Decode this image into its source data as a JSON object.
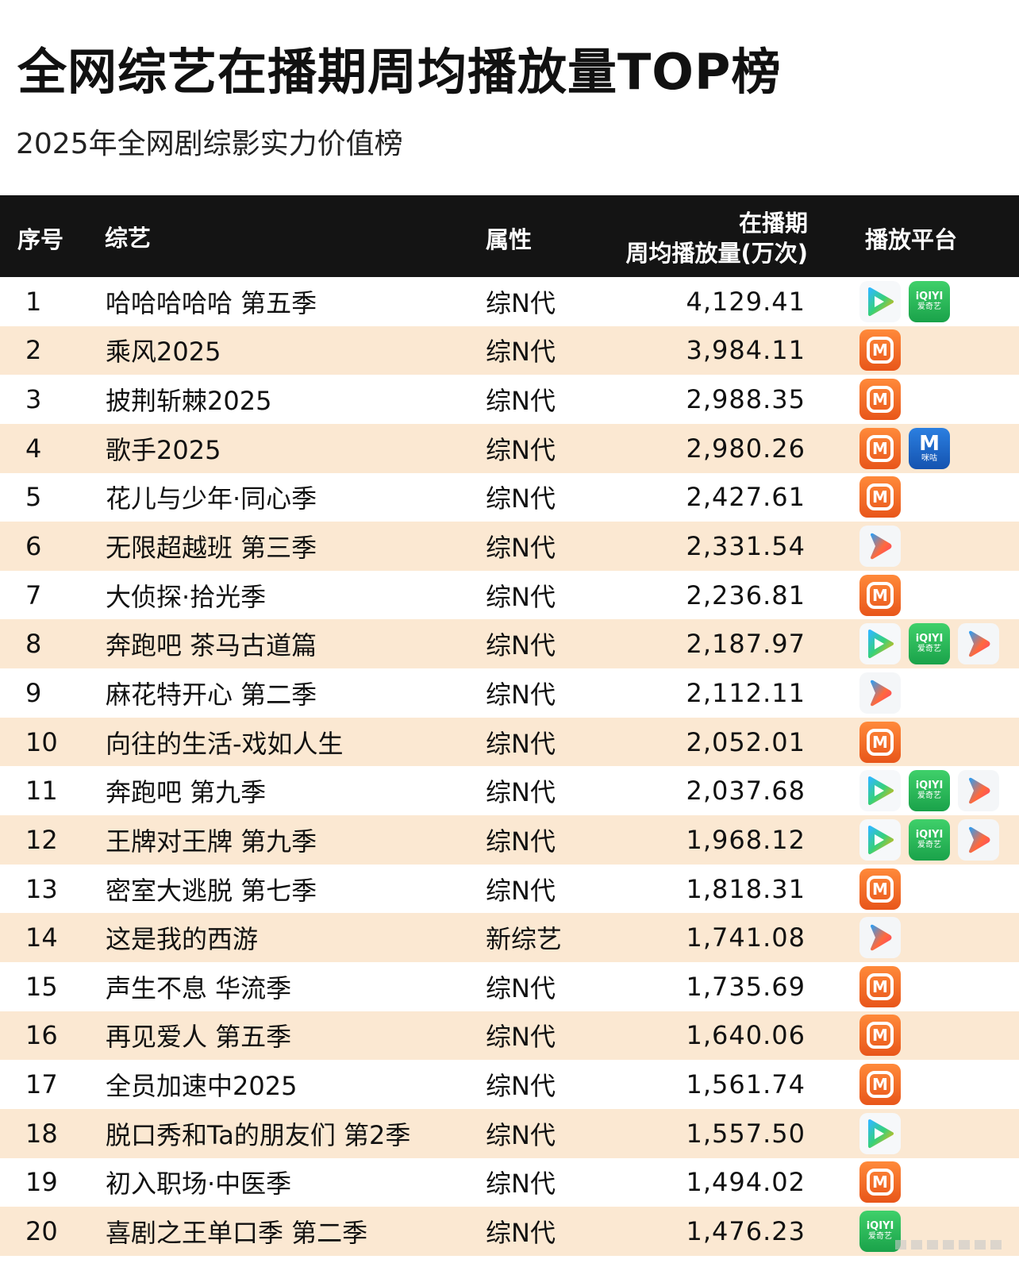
{
  "title": "全网综艺在播期周均播放量TOP榜",
  "subtitle": "2025年全网剧综影实力价值榜",
  "headers": {
    "rank": "序号",
    "name": "综艺",
    "attribute": "属性",
    "value_line1": "在播期",
    "value_line2": "周均播放量(万次)",
    "platform": "播放平台"
  },
  "platform_logos": {
    "mango": {
      "icon": "mango-tv-icon",
      "color": "#f36a25"
    },
    "iqiyi": {
      "icon": "iqiyi-icon",
      "color": "#1fb04f",
      "text": "iQIYI",
      "subtext": "爱奇艺"
    },
    "tencent": {
      "icon": "tencent-video-icon"
    },
    "youku": {
      "icon": "youku-icon"
    },
    "migu": {
      "icon": "migu-icon",
      "color": "#1f66c8",
      "text": "M",
      "subtext": "咪咕"
    }
  },
  "rows": [
    {
      "rank": "1",
      "name": "哈哈哈哈哈 第五季",
      "attribute": "综N代",
      "value": "4,129.41",
      "platforms": [
        "tencent",
        "iqiyi"
      ]
    },
    {
      "rank": "2",
      "name": "乘风2025",
      "attribute": "综N代",
      "value": "3,984.11",
      "platforms": [
        "mango"
      ]
    },
    {
      "rank": "3",
      "name": "披荆斩棘2025",
      "attribute": "综N代",
      "value": "2,988.35",
      "platforms": [
        "mango"
      ]
    },
    {
      "rank": "4",
      "name": "歌手2025",
      "attribute": "综N代",
      "value": "2,980.26",
      "platforms": [
        "mango",
        "migu"
      ]
    },
    {
      "rank": "5",
      "name": "花儿与少年·同心季",
      "attribute": "综N代",
      "value": "2,427.61",
      "platforms": [
        "mango"
      ]
    },
    {
      "rank": "6",
      "name": "无限超越班 第三季",
      "attribute": "综N代",
      "value": "2,331.54",
      "platforms": [
        "youku"
      ]
    },
    {
      "rank": "7",
      "name": "大侦探·拾光季",
      "attribute": "综N代",
      "value": "2,236.81",
      "platforms": [
        "mango"
      ]
    },
    {
      "rank": "8",
      "name": "奔跑吧 茶马古道篇",
      "attribute": "综N代",
      "value": "2,187.97",
      "platforms": [
        "tencent",
        "iqiyi",
        "youku"
      ]
    },
    {
      "rank": "9",
      "name": "麻花特开心 第二季",
      "attribute": "综N代",
      "value": "2,112.11",
      "platforms": [
        "youku"
      ]
    },
    {
      "rank": "10",
      "name": "向往的生活-戏如人生",
      "attribute": "综N代",
      "value": "2,052.01",
      "platforms": [
        "mango"
      ]
    },
    {
      "rank": "11",
      "name": "奔跑吧 第九季",
      "attribute": "综N代",
      "value": "2,037.68",
      "platforms": [
        "tencent",
        "iqiyi",
        "youku"
      ]
    },
    {
      "rank": "12",
      "name": "王牌对王牌 第九季",
      "attribute": "综N代",
      "value": "1,968.12",
      "platforms": [
        "tencent",
        "iqiyi",
        "youku"
      ]
    },
    {
      "rank": "13",
      "name": "密室大逃脱 第七季",
      "attribute": "综N代",
      "value": "1,818.31",
      "platforms": [
        "mango"
      ]
    },
    {
      "rank": "14",
      "name": "这是我的西游",
      "attribute": "新综艺",
      "value": "1,741.08",
      "platforms": [
        "youku"
      ]
    },
    {
      "rank": "15",
      "name": "声生不息 华流季",
      "attribute": "综N代",
      "value": "1,735.69",
      "platforms": [
        "mango"
      ]
    },
    {
      "rank": "16",
      "name": "再见爱人 第五季",
      "attribute": "综N代",
      "value": "1,640.06",
      "platforms": [
        "mango"
      ]
    },
    {
      "rank": "17",
      "name": "全员加速中2025",
      "attribute": "综N代",
      "value": "1,561.74",
      "platforms": [
        "mango"
      ]
    },
    {
      "rank": "18",
      "name": "脱口秀和Ta的朋友们 第2季",
      "attribute": "综N代",
      "value": "1,557.50",
      "platforms": [
        "tencent"
      ]
    },
    {
      "rank": "19",
      "name": "初入职场·中医季",
      "attribute": "综N代",
      "value": "1,494.02",
      "platforms": [
        "mango"
      ]
    },
    {
      "rank": "20",
      "name": "喜剧之王单口季 第二季",
      "attribute": "综N代",
      "value": "1,476.23",
      "platforms": [
        "iqiyi"
      ]
    }
  ]
}
